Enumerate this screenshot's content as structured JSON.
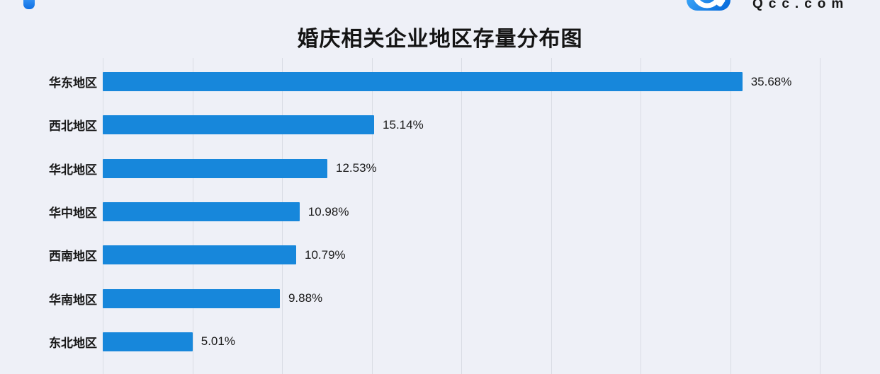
{
  "header": {
    "title": "婚庆相关企业地区存量分布图",
    "brand_text": "Qcc.com"
  },
  "branding": {
    "brand_blue": "#1377ea",
    "logo_icon": "qcc-magnifier-logo"
  },
  "chart_data": {
    "type": "bar",
    "orientation": "horizontal",
    "title": "婚庆相关企业地区存量分布图",
    "categories": [
      "华东地区",
      "西北地区",
      "华北地区",
      "华中地区",
      "西南地区",
      "华南地区",
      "东北地区"
    ],
    "values": [
      35.68,
      15.14,
      12.53,
      10.98,
      10.79,
      9.88,
      5.01
    ],
    "value_labels": [
      "35.68%",
      "15.14%",
      "12.53%",
      "10.98%",
      "10.79%",
      "9.88%",
      "5.01%"
    ],
    "xlabel": "",
    "ylabel": "",
    "xlim": [
      0,
      40
    ],
    "grid": true,
    "grid_ticks_percent": [
      0,
      5,
      10,
      15,
      20,
      25,
      30,
      35,
      40
    ],
    "legend": false,
    "bar_color": "#1787db",
    "grid_color": "#d9dce4",
    "value_label_position": "right-of-bar"
  }
}
